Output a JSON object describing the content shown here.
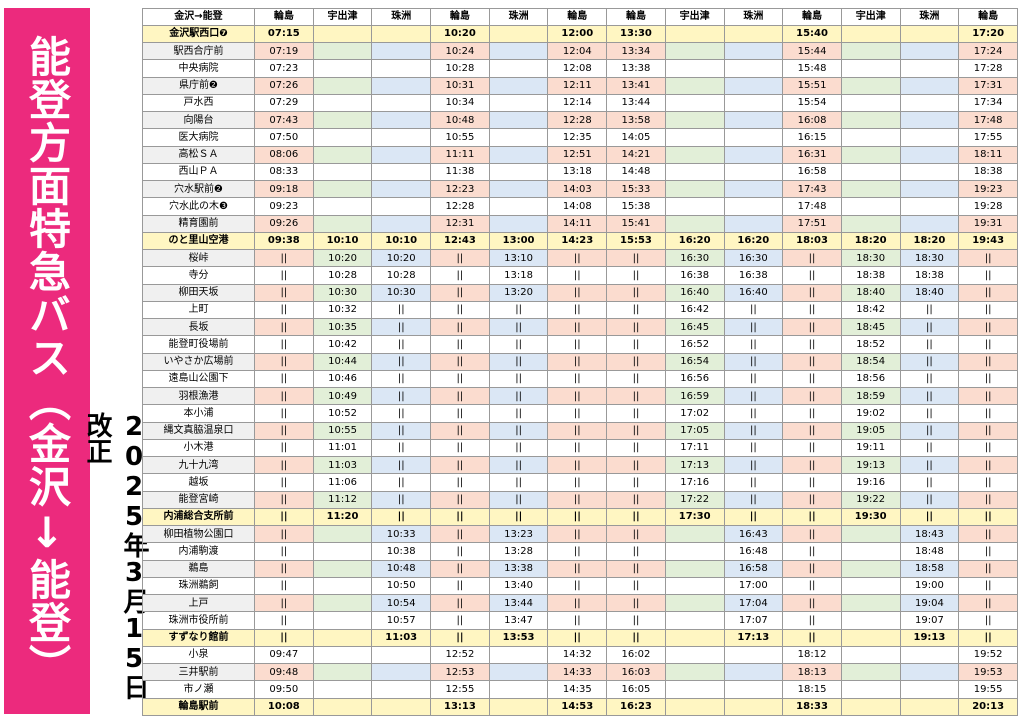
{
  "header": {
    "title": "能登方面特急バス（金沢↓能登）",
    "date": "2025年3月15日改正"
  },
  "table": {
    "columns": [
      "金沢→能登",
      "輪島",
      "宇出津",
      "珠洲",
      "輪島",
      "珠洲",
      "輪島",
      "輪島",
      "宇出津",
      "珠洲",
      "輪島",
      "宇出津",
      "珠洲",
      "輪島"
    ],
    "column_colors": [
      null,
      "#fbdccf",
      "#e2efd8",
      "#dbe7f5",
      "#fbdccf",
      "#dbe7f5",
      "#fbdccf",
      "#fbdccf",
      "#e2efd8",
      "#dbe7f5",
      "#fbdccf",
      "#e2efd8",
      "#dbe7f5",
      "#fbdccf"
    ],
    "rows": [
      {
        "major": true,
        "cells": [
          "金沢駅西口❼",
          "07:15",
          null,
          null,
          "10:20",
          null,
          "12:00",
          "13:30",
          null,
          null,
          "15:40",
          null,
          null,
          "17:20"
        ]
      },
      {
        "major": false,
        "cells": [
          "駅西合庁前",
          "07:19",
          null,
          null,
          "10:24",
          null,
          "12:04",
          "13:34",
          null,
          null,
          "15:44",
          null,
          null,
          "17:24"
        ]
      },
      {
        "major": false,
        "cells": [
          "中央病院",
          "07:23",
          null,
          null,
          "10:28",
          null,
          "12:08",
          "13:38",
          null,
          null,
          "15:48",
          null,
          null,
          "17:28"
        ]
      },
      {
        "major": false,
        "cells": [
          "県庁前❷",
          "07:26",
          null,
          null,
          "10:31",
          null,
          "12:11",
          "13:41",
          null,
          null,
          "15:51",
          null,
          null,
          "17:31"
        ]
      },
      {
        "major": false,
        "cells": [
          "戸水西",
          "07:29",
          null,
          null,
          "10:34",
          null,
          "12:14",
          "13:44",
          null,
          null,
          "15:54",
          null,
          null,
          "17:34"
        ]
      },
      {
        "major": false,
        "cells": [
          "向陽台",
          "07:43",
          null,
          null,
          "10:48",
          null,
          "12:28",
          "13:58",
          null,
          null,
          "16:08",
          null,
          null,
          "17:48"
        ]
      },
      {
        "major": false,
        "cells": [
          "医大病院",
          "07:50",
          null,
          null,
          "10:55",
          null,
          "12:35",
          "14:05",
          null,
          null,
          "16:15",
          null,
          null,
          "17:55"
        ]
      },
      {
        "major": false,
        "cells": [
          "高松ＳＡ",
          "08:06",
          null,
          null,
          "11:11",
          null,
          "12:51",
          "14:21",
          null,
          null,
          "16:31",
          null,
          null,
          "18:11"
        ]
      },
      {
        "major": false,
        "cells": [
          "西山ＰＡ",
          "08:33",
          null,
          null,
          "11:38",
          null,
          "13:18",
          "14:48",
          null,
          null,
          "16:58",
          null,
          null,
          "18:38"
        ]
      },
      {
        "major": false,
        "cells": [
          "穴水駅前❷",
          "09:18",
          null,
          null,
          "12:23",
          null,
          "14:03",
          "15:33",
          null,
          null,
          "17:43",
          null,
          null,
          "19:23"
        ]
      },
      {
        "major": false,
        "cells": [
          "穴水此の木❸",
          "09:23",
          null,
          null,
          "12:28",
          null,
          "14:08",
          "15:38",
          null,
          null,
          "17:48",
          null,
          null,
          "19:28"
        ]
      },
      {
        "major": false,
        "cells": [
          "精育園前",
          "09:26",
          null,
          null,
          "12:31",
          null,
          "14:11",
          "15:41",
          null,
          null,
          "17:51",
          null,
          null,
          "19:31"
        ]
      },
      {
        "major": true,
        "cells": [
          "のと里山空港",
          "09:38",
          "10:10",
          "10:10",
          "12:43",
          "13:00",
          "14:23",
          "15:53",
          "16:20",
          "16:20",
          "18:03",
          "18:20",
          "18:20",
          "19:43"
        ]
      },
      {
        "major": false,
        "cells": [
          "桜峠",
          "||",
          "10:20",
          "10:20",
          "||",
          "13:10",
          "||",
          "||",
          "16:30",
          "16:30",
          "||",
          "18:30",
          "18:30",
          "||"
        ]
      },
      {
        "major": false,
        "cells": [
          "寺分",
          "||",
          "10:28",
          "10:28",
          "||",
          "13:18",
          "||",
          "||",
          "16:38",
          "16:38",
          "||",
          "18:38",
          "18:38",
          "||"
        ]
      },
      {
        "major": false,
        "cells": [
          "柳田天坂",
          "||",
          "10:30",
          "10:30",
          "||",
          "13:20",
          "||",
          "||",
          "16:40",
          "16:40",
          "||",
          "18:40",
          "18:40",
          "||"
        ]
      },
      {
        "major": false,
        "cells": [
          "上町",
          "||",
          "10:32",
          "||",
          "||",
          "||",
          "||",
          "||",
          "16:42",
          "||",
          "||",
          "18:42",
          "||",
          "||"
        ]
      },
      {
        "major": false,
        "cells": [
          "長坂",
          "||",
          "10:35",
          "||",
          "||",
          "||",
          "||",
          "||",
          "16:45",
          "||",
          "||",
          "18:45",
          "||",
          "||"
        ]
      },
      {
        "major": false,
        "cells": [
          "能登町役場前",
          "||",
          "10:42",
          "||",
          "||",
          "||",
          "||",
          "||",
          "16:52",
          "||",
          "||",
          "18:52",
          "||",
          "||"
        ]
      },
      {
        "major": false,
        "cells": [
          "いやさか広場前",
          "||",
          "10:44",
          "||",
          "||",
          "||",
          "||",
          "||",
          "16:54",
          "||",
          "||",
          "18:54",
          "||",
          "||"
        ]
      },
      {
        "major": false,
        "cells": [
          "遠島山公園下",
          "||",
          "10:46",
          "||",
          "||",
          "||",
          "||",
          "||",
          "16:56",
          "||",
          "||",
          "18:56",
          "||",
          "||"
        ]
      },
      {
        "major": false,
        "cells": [
          "羽根漁港",
          "||",
          "10:49",
          "||",
          "||",
          "||",
          "||",
          "||",
          "16:59",
          "||",
          "||",
          "18:59",
          "||",
          "||"
        ]
      },
      {
        "major": false,
        "cells": [
          "本小浦",
          "||",
          "10:52",
          "||",
          "||",
          "||",
          "||",
          "||",
          "17:02",
          "||",
          "||",
          "19:02",
          "||",
          "||"
        ]
      },
      {
        "major": false,
        "cells": [
          "縄文真脇温泉口",
          "||",
          "10:55",
          "||",
          "||",
          "||",
          "||",
          "||",
          "17:05",
          "||",
          "||",
          "19:05",
          "||",
          "||"
        ]
      },
      {
        "major": false,
        "cells": [
          "小木港",
          "||",
          "11:01",
          "||",
          "||",
          "||",
          "||",
          "||",
          "17:11",
          "||",
          "||",
          "19:11",
          "||",
          "||"
        ]
      },
      {
        "major": false,
        "cells": [
          "九十九湾",
          "||",
          "11:03",
          "||",
          "||",
          "||",
          "||",
          "||",
          "17:13",
          "||",
          "||",
          "19:13",
          "||",
          "||"
        ]
      },
      {
        "major": false,
        "cells": [
          "越坂",
          "||",
          "11:06",
          "||",
          "||",
          "||",
          "||",
          "||",
          "17:16",
          "||",
          "||",
          "19:16",
          "||",
          "||"
        ]
      },
      {
        "major": false,
        "cells": [
          "能登宮崎",
          "||",
          "11:12",
          "||",
          "||",
          "||",
          "||",
          "||",
          "17:22",
          "||",
          "||",
          "19:22",
          "||",
          "||"
        ]
      },
      {
        "major": true,
        "cells": [
          "内浦総合支所前",
          "||",
          "11:20",
          "||",
          "||",
          "||",
          "||",
          "||",
          "17:30",
          "||",
          "||",
          "19:30",
          "||",
          "||"
        ]
      },
      {
        "major": false,
        "cells": [
          "柳田植物公園口",
          "||",
          null,
          "10:33",
          "||",
          "13:23",
          "||",
          "||",
          null,
          "16:43",
          "||",
          null,
          "18:43",
          "||"
        ]
      },
      {
        "major": false,
        "cells": [
          "内浦駒渡",
          "||",
          null,
          "10:38",
          "||",
          "13:28",
          "||",
          "||",
          null,
          "16:48",
          "||",
          null,
          "18:48",
          "||"
        ]
      },
      {
        "major": false,
        "cells": [
          "鵜島",
          "||",
          null,
          "10:48",
          "||",
          "13:38",
          "||",
          "||",
          null,
          "16:58",
          "||",
          null,
          "18:58",
          "||"
        ]
      },
      {
        "major": false,
        "cells": [
          "珠洲鵜飼",
          "||",
          null,
          "10:50",
          "||",
          "13:40",
          "||",
          "||",
          null,
          "17:00",
          "||",
          null,
          "19:00",
          "||"
        ]
      },
      {
        "major": false,
        "cells": [
          "上戸",
          "||",
          null,
          "10:54",
          "||",
          "13:44",
          "||",
          "||",
          null,
          "17:04",
          "||",
          null,
          "19:04",
          "||"
        ]
      },
      {
        "major": false,
        "cells": [
          "珠洲市役所前",
          "||",
          null,
          "10:57",
          "||",
          "13:47",
          "||",
          "||",
          null,
          "17:07",
          "||",
          null,
          "19:07",
          "||"
        ]
      },
      {
        "major": true,
        "cells": [
          "すずなり館前",
          "||",
          null,
          "11:03",
          "||",
          "13:53",
          "||",
          "||",
          null,
          "17:13",
          "||",
          null,
          "19:13",
          "||"
        ]
      },
      {
        "major": false,
        "cells": [
          "小泉",
          "09:47",
          null,
          null,
          "12:52",
          null,
          "14:32",
          "16:02",
          null,
          null,
          "18:12",
          null,
          null,
          "19:52"
        ]
      },
      {
        "major": false,
        "cells": [
          "三井駅前",
          "09:48",
          null,
          null,
          "12:53",
          null,
          "14:33",
          "16:03",
          null,
          null,
          "18:13",
          null,
          null,
          "19:53"
        ]
      },
      {
        "major": false,
        "cells": [
          "市ノ瀬",
          "09:50",
          null,
          null,
          "12:55",
          null,
          "14:35",
          "16:05",
          null,
          null,
          "18:15",
          null,
          null,
          "19:55"
        ]
      },
      {
        "major": true,
        "cells": [
          "輪島駅前",
          "10:08",
          null,
          null,
          "13:13",
          null,
          "14:53",
          "16:23",
          null,
          null,
          "18:33",
          null,
          null,
          "20:13"
        ]
      }
    ]
  }
}
